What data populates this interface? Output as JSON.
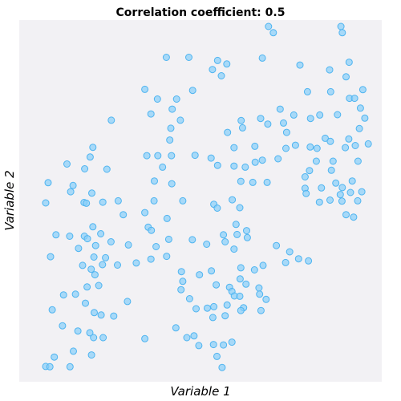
{
  "chart_data": {
    "type": "scatter",
    "title": "Correlation coefficient: 0.5",
    "xlabel": "Variable 1",
    "ylabel": "Variable 2",
    "xlim": [
      0,
      1
    ],
    "ylim": [
      0,
      1
    ],
    "grid": false,
    "plot_background": "#f2f1f4",
    "point_color": "#87cefa",
    "point_edge_color": "#4fb4f0",
    "points": [
      [
        0.692,
        1.0
      ],
      [
        0.904,
        1.0
      ],
      [
        0.706,
        0.982
      ],
      [
        0.908,
        0.982
      ],
      [
        0.393,
        0.911
      ],
      [
        0.459,
        0.911
      ],
      [
        0.543,
        0.902
      ],
      [
        0.57,
        0.892
      ],
      [
        0.528,
        0.876
      ],
      [
        0.674,
        0.909
      ],
      [
        0.784,
        0.889
      ],
      [
        0.871,
        0.875
      ],
      [
        0.928,
        0.897
      ],
      [
        0.554,
        0.858
      ],
      [
        0.919,
        0.855
      ],
      [
        0.968,
        0.818
      ],
      [
        0.806,
        0.812
      ],
      [
        0.874,
        0.812
      ],
      [
        0.929,
        0.793
      ],
      [
        0.944,
        0.793
      ],
      [
        0.33,
        0.819
      ],
      [
        0.367,
        0.791
      ],
      [
        0.423,
        0.791
      ],
      [
        0.47,
        0.816
      ],
      [
        0.41,
        0.762
      ],
      [
        0.726,
        0.762
      ],
      [
        0.766,
        0.745
      ],
      [
        0.842,
        0.745
      ],
      [
        0.894,
        0.746
      ],
      [
        0.961,
        0.765
      ],
      [
        0.232,
        0.73
      ],
      [
        0.348,
        0.748
      ],
      [
        0.434,
        0.73
      ],
      [
        0.612,
        0.729
      ],
      [
        0.669,
        0.735
      ],
      [
        0.736,
        0.722
      ],
      [
        0.815,
        0.735
      ],
      [
        0.974,
        0.736
      ],
      [
        0.406,
        0.707
      ],
      [
        0.572,
        0.695
      ],
      [
        0.616,
        0.708
      ],
      [
        0.69,
        0.719
      ],
      [
        0.745,
        0.695
      ],
      [
        0.858,
        0.678
      ],
      [
        0.927,
        0.676
      ],
      [
        0.958,
        0.706
      ],
      [
        0.178,
        0.652
      ],
      [
        0.403,
        0.673
      ],
      [
        0.591,
        0.651
      ],
      [
        0.652,
        0.655
      ],
      [
        0.743,
        0.649
      ],
      [
        0.771,
        0.658
      ],
      [
        0.814,
        0.653
      ],
      [
        0.834,
        0.649
      ],
      [
        0.873,
        0.669
      ],
      [
        0.917,
        0.651
      ],
      [
        0.946,
        0.657
      ],
      [
        0.984,
        0.662
      ],
      [
        0.17,
        0.624
      ],
      [
        0.336,
        0.628
      ],
      [
        0.368,
        0.628
      ],
      [
        0.408,
        0.628
      ],
      [
        0.477,
        0.629
      ],
      [
        0.524,
        0.621
      ],
      [
        0.674,
        0.615
      ],
      [
        0.72,
        0.619
      ],
      [
        0.832,
        0.612
      ],
      [
        0.881,
        0.612
      ],
      [
        0.954,
        0.612
      ],
      [
        0.102,
        0.604
      ],
      [
        0.154,
        0.59
      ],
      [
        0.219,
        0.589
      ],
      [
        0.382,
        0.595
      ],
      [
        0.543,
        0.6
      ],
      [
        0.591,
        0.598
      ],
      [
        0.624,
        0.595
      ],
      [
        0.653,
        0.609
      ],
      [
        0.812,
        0.585
      ],
      [
        0.799,
        0.567
      ],
      [
        0.876,
        0.586
      ],
      [
        0.889,
        0.549
      ],
      [
        0.047,
        0.55
      ],
      [
        0.12,
        0.542
      ],
      [
        0.358,
        0.555
      ],
      [
        0.409,
        0.547
      ],
      [
        0.611,
        0.554
      ],
      [
        0.646,
        0.551
      ],
      [
        0.688,
        0.551
      ],
      [
        0.799,
        0.534
      ],
      [
        0.847,
        0.535
      ],
      [
        0.908,
        0.536
      ],
      [
        0.937,
        0.555
      ],
      [
        0.113,
        0.524
      ],
      [
        0.175,
        0.52
      ],
      [
        0.802,
        0.519
      ],
      [
        0.902,
        0.516
      ],
      [
        0.932,
        0.522
      ],
      [
        0.965,
        0.524
      ],
      [
        0.04,
        0.492
      ],
      [
        0.207,
        0.494
      ],
      [
        0.152,
        0.493
      ],
      [
        0.159,
        0.491
      ],
      [
        0.252,
        0.498
      ],
      [
        0.357,
        0.498
      ],
      [
        0.441,
        0.498
      ],
      [
        0.532,
        0.488
      ],
      [
        0.586,
        0.501
      ],
      [
        0.841,
        0.494
      ],
      [
        0.872,
        0.5
      ],
      [
        0.907,
        0.497
      ],
      [
        0.953,
        0.498
      ],
      [
        0.542,
        0.477
      ],
      [
        0.608,
        0.478
      ],
      [
        0.267,
        0.458
      ],
      [
        0.33,
        0.464
      ],
      [
        0.395,
        0.447
      ],
      [
        0.919,
        0.458
      ],
      [
        0.941,
        0.451
      ],
      [
        0.34,
        0.422
      ],
      [
        0.597,
        0.43
      ],
      [
        0.628,
        0.412
      ],
      [
        0.178,
        0.423
      ],
      [
        0.07,
        0.4
      ],
      [
        0.11,
        0.396
      ],
      [
        0.153,
        0.396
      ],
      [
        0.201,
        0.403
      ],
      [
        0.162,
        0.389
      ],
      [
        0.186,
        0.369
      ],
      [
        0.231,
        0.38
      ],
      [
        0.349,
        0.413
      ],
      [
        0.4,
        0.387
      ],
      [
        0.469,
        0.386
      ],
      [
        0.565,
        0.38
      ],
      [
        0.63,
        0.392
      ],
      [
        0.591,
        0.359
      ],
      [
        0.715,
        0.369
      ],
      [
        0.754,
        0.351
      ],
      [
        0.136,
        0.361
      ],
      [
        0.181,
        0.336
      ],
      [
        0.215,
        0.334
      ],
      [
        0.282,
        0.371
      ],
      [
        0.363,
        0.366
      ],
      [
        0.511,
        0.373
      ],
      [
        0.56,
        0.4
      ],
      [
        0.6,
        0.401
      ],
      [
        0.742,
        0.32
      ],
      [
        0.348,
        0.33
      ],
      [
        0.394,
        0.338
      ],
      [
        0.054,
        0.337
      ],
      [
        0.148,
        0.312
      ],
      [
        0.206,
        0.314
      ],
      [
        0.25,
        0.313
      ],
      [
        0.305,
        0.319
      ],
      [
        0.676,
        0.312
      ],
      [
        0.437,
        0.294
      ],
      [
        0.611,
        0.305
      ],
      [
        0.78,
        0.331
      ],
      [
        0.809,
        0.325
      ],
      [
        0.184,
        0.285
      ],
      [
        0.173,
        0.301
      ],
      [
        0.441,
        0.266
      ],
      [
        0.49,
        0.285
      ],
      [
        0.525,
        0.296
      ],
      [
        0.651,
        0.299
      ],
      [
        0.609,
        0.273
      ],
      [
        0.626,
        0.258
      ],
      [
        0.092,
        0.227
      ],
      [
        0.127,
        0.229
      ],
      [
        0.161,
        0.25
      ],
      [
        0.195,
        0.254
      ],
      [
        0.279,
        0.208
      ],
      [
        0.436,
        0.242
      ],
      [
        0.539,
        0.256
      ],
      [
        0.578,
        0.249
      ],
      [
        0.664,
        0.247
      ],
      [
        0.156,
        0.203
      ],
      [
        0.182,
        0.176
      ],
      [
        0.202,
        0.169
      ],
      [
        0.239,
        0.166
      ],
      [
        0.461,
        0.216
      ],
      [
        0.48,
        0.187
      ],
      [
        0.532,
        0.193
      ],
      [
        0.513,
        0.189
      ],
      [
        0.571,
        0.198
      ],
      [
        0.585,
        0.237
      ],
      [
        0.592,
        0.224
      ],
      [
        0.608,
        0.223
      ],
      [
        0.666,
        0.229
      ],
      [
        0.685,
        0.214
      ],
      [
        0.619,
        0.19
      ],
      [
        0.529,
        0.162
      ],
      [
        0.565,
        0.167
      ],
      [
        0.611,
        0.182
      ],
      [
        0.67,
        0.182
      ],
      [
        0.059,
        0.184
      ],
      [
        0.089,
        0.138
      ],
      [
        0.134,
        0.123
      ],
      [
        0.169,
        0.118
      ],
      [
        0.18,
        0.104
      ],
      [
        0.208,
        0.104
      ],
      [
        0.33,
        0.101
      ],
      [
        0.453,
        0.104
      ],
      [
        0.421,
        0.132
      ],
      [
        0.474,
        0.109
      ],
      [
        0.488,
        0.081
      ],
      [
        0.531,
        0.084
      ],
      [
        0.56,
        0.083
      ],
      [
        0.585,
        0.091
      ],
      [
        0.065,
        0.048
      ],
      [
        0.121,
        0.065
      ],
      [
        0.174,
        0.054
      ],
      [
        0.541,
        0.05
      ],
      [
        0.556,
        0.018
      ],
      [
        0.04,
        0.021
      ],
      [
        0.052,
        0.02
      ],
      [
        0.111,
        0.02
      ]
    ]
  }
}
